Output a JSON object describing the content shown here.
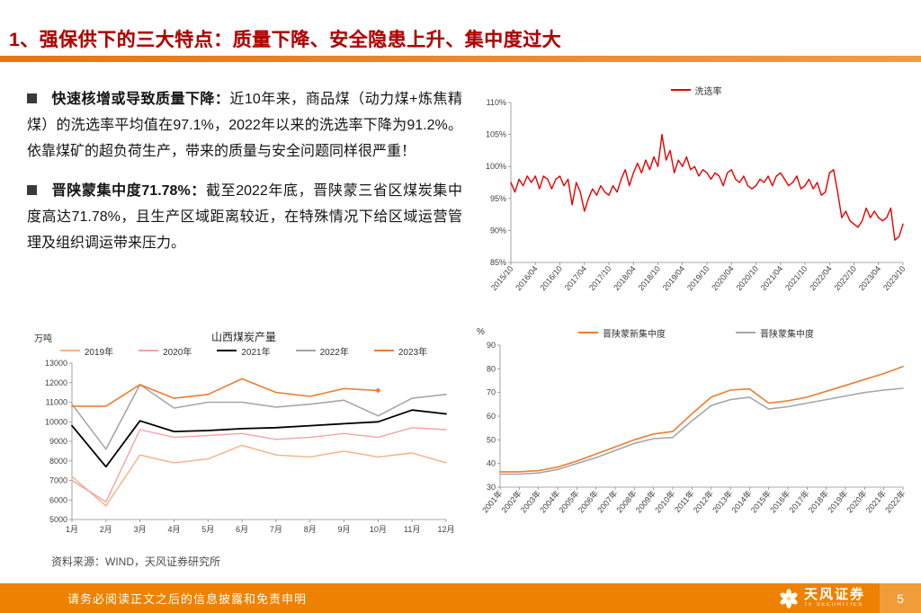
{
  "header": {
    "title": "1、强保供下的三大特点：质量下降、安全隐患上升、集中度过大"
  },
  "body": {
    "bullets": [
      {
        "lead": "快速核增或导致质量下降：",
        "text": "近10年来，商品煤（动力煤+炼焦精煤）的洗选率平均值在97.1%，2022年以来的洗选率下降为91.2%。依靠煤矿的超负荷生产，带来的质量与安全问题同样很严重！"
      },
      {
        "lead": "晋陕蒙集中度71.78%：",
        "text": "截至2022年底，晋陕蒙三省区煤炭集中度高达71.78%，且生产区域距离较近，在特殊情况下给区域运营管理及组织调运带来压力。"
      }
    ],
    "source": "资料来源：WIND，天风证券研究所"
  },
  "footer": {
    "disclaimer": "请务必阅读正文之后的信息披露和免责申明",
    "brand_name": "天风证券",
    "brand_sub": "TF SECURITIES",
    "page": "5"
  },
  "colors": {
    "accent_orange": "#ee8100",
    "title_red": "#b00000",
    "line_red": "#e60000",
    "line_orange": "#ed7d31",
    "line_gray": "#a6a6a6",
    "line_tan": "#f4b183",
    "line_pink": "#f5a3a3"
  },
  "chart_data": [
    {
      "id": "wash-rate",
      "type": "line",
      "title": "",
      "unit": "",
      "ylim": [
        85,
        110
      ],
      "yticks": [
        85,
        90,
        95,
        100,
        105,
        110
      ],
      "ytick_suffix": "%",
      "x_labels": [
        "2015/10",
        "2016/04",
        "2016/10",
        "2017/04",
        "2017/10",
        "2018/04",
        "2018/10",
        "2019/04",
        "2019/10",
        "2020/04",
        "2020/10",
        "2021/04",
        "2021/10",
        "2022/04",
        "2022/10",
        "2023/04",
        "2023/10"
      ],
      "x_label_step": 6,
      "legend_position": "top",
      "grid": false,
      "series": [
        {
          "name": "洗选率",
          "color": "#e60000",
          "width": 1.4,
          "values": [
            97.5,
            96,
            98,
            97,
            98.5,
            97.5,
            98.5,
            96.5,
            98.5,
            98,
            96.5,
            98,
            98.5,
            97,
            98,
            94,
            97.5,
            96,
            93,
            95,
            96.5,
            95.5,
            97,
            96,
            95.5,
            97,
            96,
            98,
            99.5,
            97,
            99,
            100.5,
            99,
            101,
            99.5,
            101.5,
            100,
            105,
            101,
            102.5,
            99,
            101,
            100,
            101.5,
            99.5,
            100,
            98.5,
            99.5,
            99,
            98,
            99,
            98.5,
            97,
            99,
            99.5,
            98,
            97.5,
            98.5,
            97,
            96.5,
            97,
            98,
            97.5,
            98.5,
            97,
            98.5,
            99,
            98,
            97,
            97.5,
            98.5,
            96.5,
            97,
            98,
            96.5,
            97.5,
            95.5,
            96,
            99,
            99.5,
            96,
            92,
            93,
            91.5,
            91,
            90.5,
            91.5,
            93.5,
            92,
            93,
            92,
            91.5,
            92,
            93.5,
            88.5,
            89,
            91
          ]
        }
      ]
    },
    {
      "id": "shanxi-output",
      "type": "line",
      "title": "山西煤炭产量",
      "unit": "万吨",
      "ylim": [
        5000,
        13000
      ],
      "yticks": [
        5000,
        6000,
        7000,
        8000,
        9000,
        10000,
        11000,
        12000,
        13000
      ],
      "ytick_suffix": "",
      "x_labels": [
        "1月",
        "2月",
        "3月",
        "4月",
        "5月",
        "6月",
        "7月",
        "8月",
        "9月",
        "10月",
        "11月",
        "12月"
      ],
      "x_label_step": 1,
      "legend_position": "top",
      "grid": false,
      "series": [
        {
          "name": "2019年",
          "color": "#f4b183",
          "width": 1.4,
          "values": [
            7200,
            5700,
            8300,
            7900,
            8100,
            8800,
            8300,
            8200,
            8500,
            8200,
            8400,
            7900
          ]
        },
        {
          "name": "2020年",
          "color": "#f5a3a3",
          "width": 1.4,
          "values": [
            7000,
            5900,
            9600,
            9200,
            9300,
            9400,
            9100,
            9200,
            9400,
            9200,
            9700,
            9600
          ]
        },
        {
          "name": "2021年",
          "color": "#000000",
          "width": 1.8,
          "values": [
            9800,
            7700,
            10050,
            9500,
            9550,
            9650,
            9700,
            9800,
            9900,
            10000,
            10600,
            10400
          ]
        },
        {
          "name": "2022年",
          "color": "#a6a6a6",
          "width": 1.6,
          "values": [
            10900,
            8600,
            11900,
            10700,
            11000,
            11000,
            10750,
            10900,
            11100,
            10300,
            11200,
            11400
          ]
        },
        {
          "name": "2023年",
          "color": "#ed7d31",
          "width": 1.6,
          "end_marker": true,
          "values": [
            10800,
            10800,
            11900,
            11200,
            11400,
            12200,
            11500,
            11300,
            11700,
            11600,
            null,
            null
          ]
        }
      ]
    },
    {
      "id": "concentration",
      "type": "line",
      "title": "",
      "unit": "%",
      "ylim": [
        30,
        90
      ],
      "yticks": [
        30,
        40,
        50,
        60,
        70,
        80,
        90
      ],
      "ytick_suffix": "",
      "x_labels": [
        "2001年",
        "2002年",
        "2003年",
        "2004年",
        "2005年",
        "2006年",
        "2007年",
        "2008年",
        "2009年",
        "2010年",
        "2011年",
        "2012年",
        "2013年",
        "2014年",
        "2015年",
        "2016年",
        "2017年",
        "2018年",
        "2019年",
        "2020年",
        "2021年",
        "2022年"
      ],
      "x_label_step": 1,
      "legend_position": "top",
      "grid": false,
      "series": [
        {
          "name": "晋陕蒙新集中度",
          "color": "#ed7d31",
          "width": 1.6,
          "values": [
            36.5,
            36.5,
            37,
            38.5,
            41,
            44,
            47,
            50,
            52.5,
            53.5,
            61,
            68,
            71,
            71.5,
            65.5,
            66.5,
            68,
            70.5,
            73,
            75.5,
            78,
            81
          ]
        },
        {
          "name": "晋陕蒙集中度",
          "color": "#a6a6a6",
          "width": 1.6,
          "values": [
            35.5,
            35.5,
            36,
            37.5,
            40,
            42.5,
            45.5,
            48.5,
            50.5,
            51,
            58,
            64.5,
            67,
            68,
            63,
            64,
            65.5,
            67,
            68.5,
            70,
            71,
            71.78
          ]
        }
      ]
    }
  ]
}
